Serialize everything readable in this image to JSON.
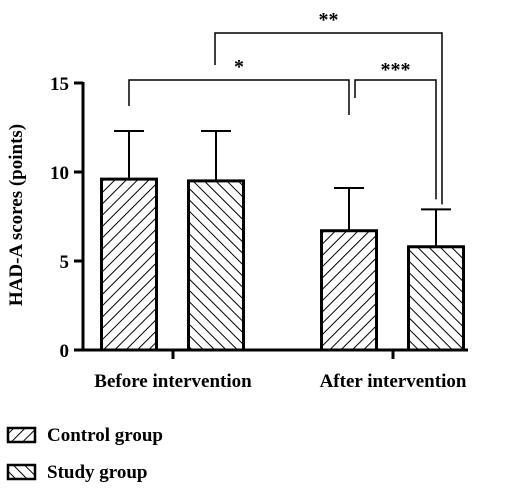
{
  "chart_data": {
    "type": "bar",
    "ylabel": "HAD-A scores (points)",
    "ylim": [
      0,
      15
    ],
    "yticks": [
      0,
      5,
      10,
      15
    ],
    "categories": [
      "Before intervention",
      "After intervention"
    ],
    "series": [
      {
        "name": "Control group",
        "values": [
          9.6,
          6.7
        ],
        "errors": [
          2.7,
          2.4
        ],
        "pattern": "hatch-forward"
      },
      {
        "name": "Study group",
        "values": [
          9.5,
          5.8
        ],
        "errors": [
          2.8,
          2.1
        ],
        "pattern": "hatch-back"
      }
    ],
    "significance": [
      {
        "label": "*",
        "from": [
          0,
          0
        ],
        "to": [
          1,
          0
        ]
      },
      {
        "label": "***",
        "from": [
          1,
          0
        ],
        "to": [
          1,
          1
        ]
      },
      {
        "label": "**",
        "from": [
          0,
          0
        ],
        "to": [
          1,
          1
        ]
      }
    ],
    "legend_position": "bottom-left",
    "grid": false
  }
}
